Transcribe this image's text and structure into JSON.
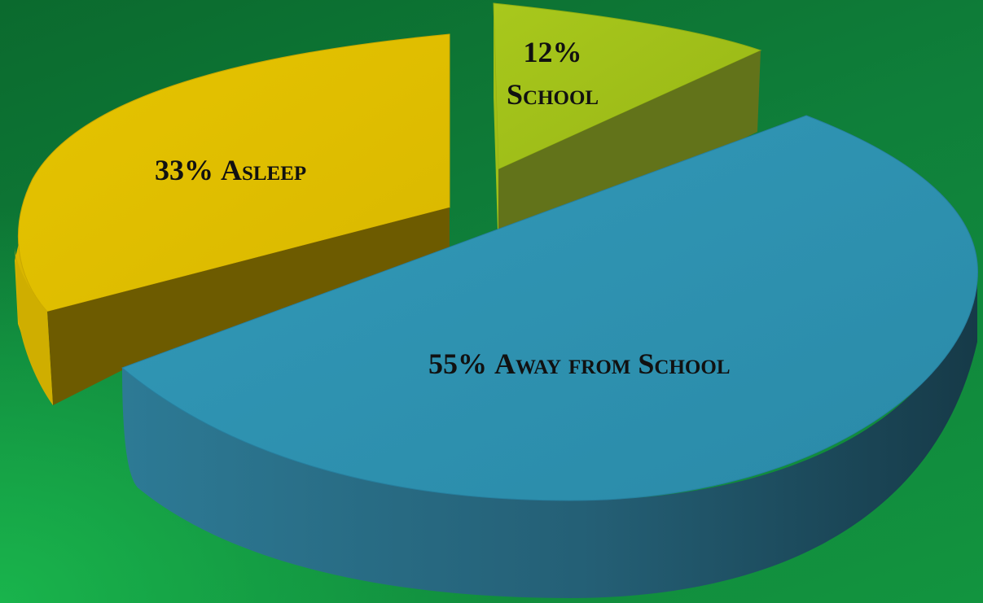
{
  "chart_data": {
    "type": "pie",
    "style": "3d-exploded",
    "slices": [
      {
        "label": "Asleep",
        "value": 33,
        "color": "#e2c000",
        "side_color": "#6e5c00"
      },
      {
        "label": "School",
        "value": 12,
        "color": "#a2c219",
        "side_color": "#62731a"
      },
      {
        "label": "Away from School",
        "value": 55,
        "color": "#2f95b4",
        "side_color": "#245a6e"
      }
    ],
    "labels": {
      "asleep_pct": "33%",
      "asleep_text": "Asleep",
      "school_pct": "12%",
      "school_text": "School",
      "away_pct": "55%",
      "away_text": "Away from School"
    },
    "background_color": "#0f7f3a"
  }
}
